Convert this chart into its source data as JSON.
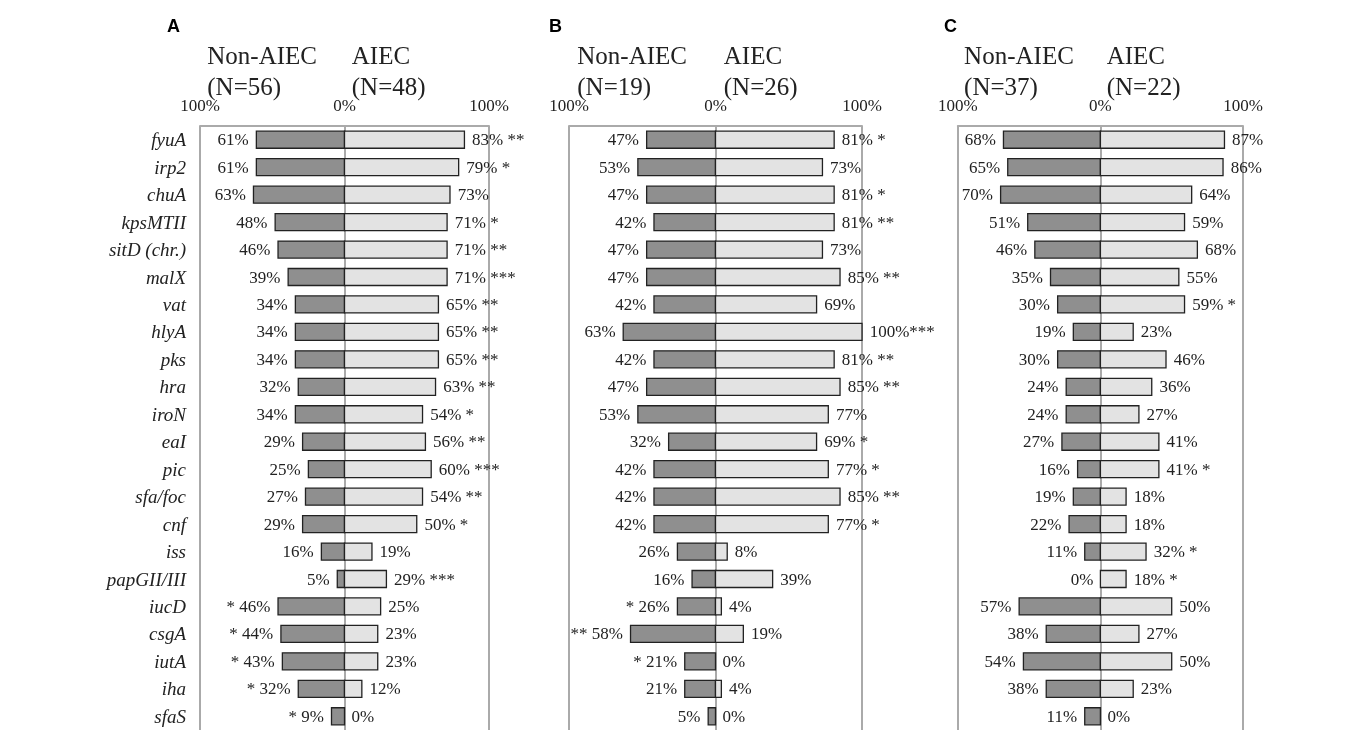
{
  "chart_data": [
    {
      "type": "bar",
      "title": "A",
      "orientation": "horizontal",
      "grid": "x",
      "categories": [
        "fyuA",
        "irp2",
        "chuA",
        "kpsMTII",
        "sitD (chr.)",
        "malX",
        "vat",
        "hlyA",
        "pks",
        "hra",
        "iroN",
        "eaI",
        "pic",
        "sfa/foc",
        "cnf",
        "iss",
        "papGII/III",
        "iucD",
        "csgA",
        "iutA",
        "iha",
        "sfaS"
      ],
      "xlim": [
        -100,
        100
      ],
      "xticks": [
        {
          "value": -100,
          "label": "100%"
        },
        {
          "value": 0,
          "label": "0%"
        },
        {
          "value": 100,
          "label": "100%"
        }
      ],
      "series": [
        {
          "name": "Non-AIEC (N=56)",
          "color": "#8f8f8f",
          "values": [
            61,
            61,
            63,
            48,
            46,
            39,
            34,
            34,
            34,
            32,
            34,
            29,
            25,
            27,
            29,
            16,
            5,
            46,
            44,
            43,
            32,
            9
          ],
          "base": [
            -61,
            -61,
            -63,
            -48,
            -46,
            -39,
            -34,
            -34,
            -34,
            -32,
            -34,
            -29,
            -25,
            -27,
            -29,
            -16,
            -5,
            -46,
            -44,
            -43,
            -32,
            -9
          ],
          "value_labels": [
            "61%",
            "61%",
            "63%",
            "48%",
            "46%",
            "39%",
            "34%",
            "34%",
            "34%",
            "32%",
            "34%",
            "29%",
            "25%",
            "27%",
            "29%",
            "16%",
            "5%",
            "* 46%",
            "* 44%",
            "* 43%",
            "* 32%",
            "* 9%"
          ]
        },
        {
          "name": "AIEC (N=48)",
          "color": "#e3e3e3",
          "values": [
            83,
            79,
            73,
            71,
            71,
            71,
            65,
            65,
            65,
            63,
            54,
            56,
            60,
            54,
            50,
            19,
            29,
            25,
            23,
            23,
            12,
            0
          ],
          "value_labels": [
            "83% **",
            "79% *",
            "73%",
            "71% *",
            "71% **",
            "71% ***",
            "65% **",
            "65% **",
            "65% **",
            "63% **",
            "54% *",
            "56% **",
            "60% ***",
            "54% **",
            "50% *",
            "19%",
            "29% ***",
            "25%",
            "23%",
            "23%",
            "12%",
            "0%"
          ]
        }
      ]
    },
    {
      "type": "bar",
      "title": "B",
      "orientation": "horizontal",
      "grid": "x",
      "categories": [
        null,
        null,
        null,
        null,
        null,
        null,
        null,
        null,
        null,
        null,
        null,
        null,
        null,
        null,
        null,
        null,
        null,
        null,
        null,
        null,
        null,
        null
      ],
      "xlim": [
        -100,
        100
      ],
      "xticks": [
        {
          "value": -100,
          "label": "100%"
        },
        {
          "value": 0,
          "label": "0%"
        },
        {
          "value": 100,
          "label": "100%"
        }
      ],
      "series": [
        {
          "name": "Non-AIEC (N=19)",
          "color": "#8f8f8f",
          "values": [
            47,
            53,
            47,
            42,
            47,
            47,
            42,
            63,
            42,
            47,
            53,
            32,
            42,
            42,
            42,
            26,
            16,
            26,
            58,
            21,
            21,
            5
          ],
          "base": [
            -47,
            -53,
            -47,
            -42,
            -47,
            -47,
            -42,
            -63,
            -42,
            -47,
            -53,
            -32,
            -42,
            -42,
            -42,
            -26,
            -16,
            -26,
            -58,
            -21,
            -21,
            -5
          ],
          "value_labels": [
            "47%",
            "53%",
            "47%",
            "42%",
            "47%",
            "47%",
            "42%",
            "63%",
            "42%",
            "47%",
            "53%",
            "32%",
            "42%",
            "42%",
            "42%",
            "26%",
            "16%",
            "* 26%",
            "** 58%",
            "* 21%",
            "21%",
            "5%"
          ]
        },
        {
          "name": "AIEC (N=26)",
          "color": "#e3e3e3",
          "values": [
            81,
            73,
            81,
            81,
            73,
            85,
            69,
            100,
            81,
            85,
            77,
            69,
            77,
            85,
            77,
            8,
            39,
            4,
            19,
            0,
            4,
            0
          ],
          "value_labels": [
            "81% *",
            "73%",
            "81% *",
            "81% **",
            "73%",
            "85% **",
            "69%",
            "100%***",
            "81% **",
            "85% **",
            "77%",
            "69% *",
            "77% *",
            "85% **",
            "77% *",
            "8%",
            "39%",
            "4%",
            "19%",
            "0%",
            "4%",
            "0%"
          ]
        }
      ]
    },
    {
      "type": "bar",
      "title": "C",
      "orientation": "horizontal",
      "grid": "x",
      "categories": [
        null,
        null,
        null,
        null,
        null,
        null,
        null,
        null,
        null,
        null,
        null,
        null,
        null,
        null,
        null,
        null,
        null,
        null,
        null,
        null,
        null,
        null
      ],
      "xlim": [
        -100,
        100
      ],
      "xticks": [
        {
          "value": -100,
          "label": "100%"
        },
        {
          "value": 0,
          "label": "0%"
        },
        {
          "value": 100,
          "label": "100%"
        }
      ],
      "series": [
        {
          "name": "Non-AIEC (N=37)",
          "color": "#8f8f8f",
          "values": [
            68,
            65,
            70,
            51,
            46,
            35,
            30,
            19,
            30,
            24,
            24,
            27,
            16,
            19,
            22,
            11,
            0,
            57,
            38,
            54,
            38,
            11
          ],
          "base": [
            -68,
            -65,
            -70,
            -51,
            -46,
            -35,
            -30,
            -19,
            -30,
            -24,
            -24,
            -27,
            -16,
            -19,
            -22,
            -11,
            null,
            -57,
            -38,
            -54,
            -38,
            -11
          ],
          "value_labels": [
            "68%",
            "65%",
            "70%",
            "51%",
            "46%",
            "35%",
            "30%",
            "19%",
            "30%",
            "24%",
            "24%",
            "27%",
            "16%",
            "19%",
            "22%",
            "11%",
            "0%",
            "57%",
            "38%",
            "54%",
            "38%",
            "11%"
          ]
        },
        {
          "name": "AIEC (N=22)",
          "color": "#e3e3e3",
          "values": [
            87,
            86,
            64,
            59,
            68,
            55,
            59,
            23,
            46,
            36,
            27,
            41,
            41,
            18,
            18,
            32,
            18,
            50,
            27,
            50,
            23,
            0
          ],
          "value_labels": [
            "87%",
            "86%",
            "64%",
            "59%",
            "68%",
            "55%",
            "59% *",
            "23%",
            "46%",
            "36%",
            "27%",
            "41%",
            "41% *",
            "18%",
            "18%",
            "32% *",
            "18% *",
            "50%",
            "27%",
            "50%",
            "23%",
            "0%"
          ]
        }
      ]
    }
  ]
}
